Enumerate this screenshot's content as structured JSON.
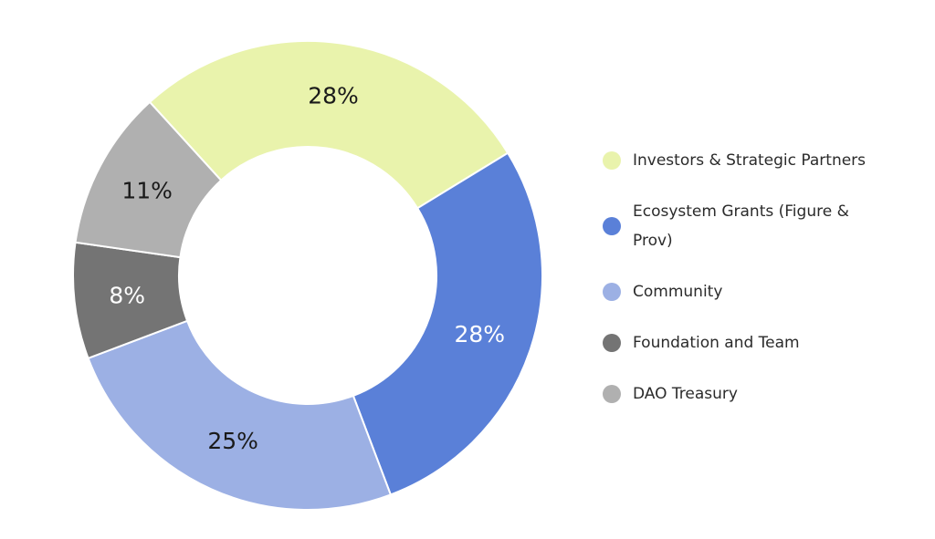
{
  "chart_data": {
    "type": "pie",
    "variant": "donut",
    "slices": [
      {
        "label": "Investors & Strategic Partners",
        "value": 28,
        "display": "28%",
        "color": "#e9f3ac",
        "label_color": "#1a1a1a"
      },
      {
        "label": "Ecosystem Grants (Figure & Prov)",
        "value": 28,
        "display": "28%",
        "color": "#5a80d8",
        "label_color": "#ffffff"
      },
      {
        "label": "Community",
        "value": 25,
        "display": "25%",
        "color": "#9cb0e4",
        "label_color": "#1a1a1a"
      },
      {
        "label": "Foundation and Team",
        "value": 8,
        "display": "8%",
        "color": "#747474",
        "label_color": "#ffffff"
      },
      {
        "label": "DAO Treasury",
        "value": 11,
        "display": "11%",
        "color": "#b0b0b0",
        "label_color": "#1a1a1a"
      }
    ],
    "legend_position": "right"
  },
  "legend": {
    "items": [
      {
        "label": "Investors & Strategic Partners",
        "color": "#e9f3ac"
      },
      {
        "label": "Ecosystem Grants (Figure & Prov)",
        "color": "#5a80d8"
      },
      {
        "label": "Community",
        "color": "#9cb0e4"
      },
      {
        "label": "Foundation and Team",
        "color": "#747474"
      },
      {
        "label": "DAO Treasury",
        "color": "#b0b0b0"
      }
    ]
  }
}
